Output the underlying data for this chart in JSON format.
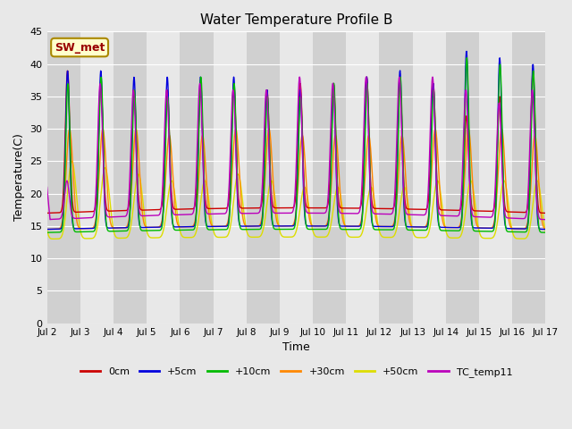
{
  "title": "Water Temperature Profile B",
  "xlabel": "Time",
  "ylabel": "Temperature(C)",
  "ylim": [
    0,
    45
  ],
  "yticks": [
    0,
    5,
    10,
    15,
    20,
    25,
    30,
    35,
    40,
    45
  ],
  "xtick_labels": [
    "Jul 2",
    "Jul 3",
    "Jul 4",
    "Jul 5",
    "Jul 6",
    "Jul 7",
    "Jul 8",
    "Jul 9",
    "Jul 10",
    "Jul 11",
    "Jul 12",
    "Jul 13",
    "Jul 14",
    "Jul 15",
    "Jul 16",
    "Jul 17"
  ],
  "series": [
    {
      "label": "0cm",
      "color": "#cc0000",
      "lw": 1.0,
      "zorder": 4
    },
    {
      "label": "+5cm",
      "color": "#0000dd",
      "lw": 1.0,
      "zorder": 5
    },
    {
      "label": "+10cm",
      "color": "#00bb00",
      "lw": 1.0,
      "zorder": 6
    },
    {
      "label": "+30cm",
      "color": "#ff8800",
      "lw": 1.0,
      "zorder": 3
    },
    {
      "label": "+50cm",
      "color": "#dddd00",
      "lw": 1.0,
      "zorder": 2
    },
    {
      "label": "TC_temp11",
      "color": "#bb00bb",
      "lw": 1.0,
      "zorder": 7
    }
  ],
  "annotation_text": "SW_met",
  "annotation_facecolor": "#ffffcc",
  "annotation_edgecolor": "#aa8800",
  "annotation_textcolor": "#990000",
  "fig_facecolor": "#e8e8e8",
  "plot_facecolor": "#e8e8e8",
  "band_colors": [
    "#d0d0d0",
    "#e8e8e8"
  ],
  "hgrid_color": "#ffffff",
  "n_days": 15,
  "figsize": [
    6.4,
    4.8
  ],
  "dpi": 100
}
